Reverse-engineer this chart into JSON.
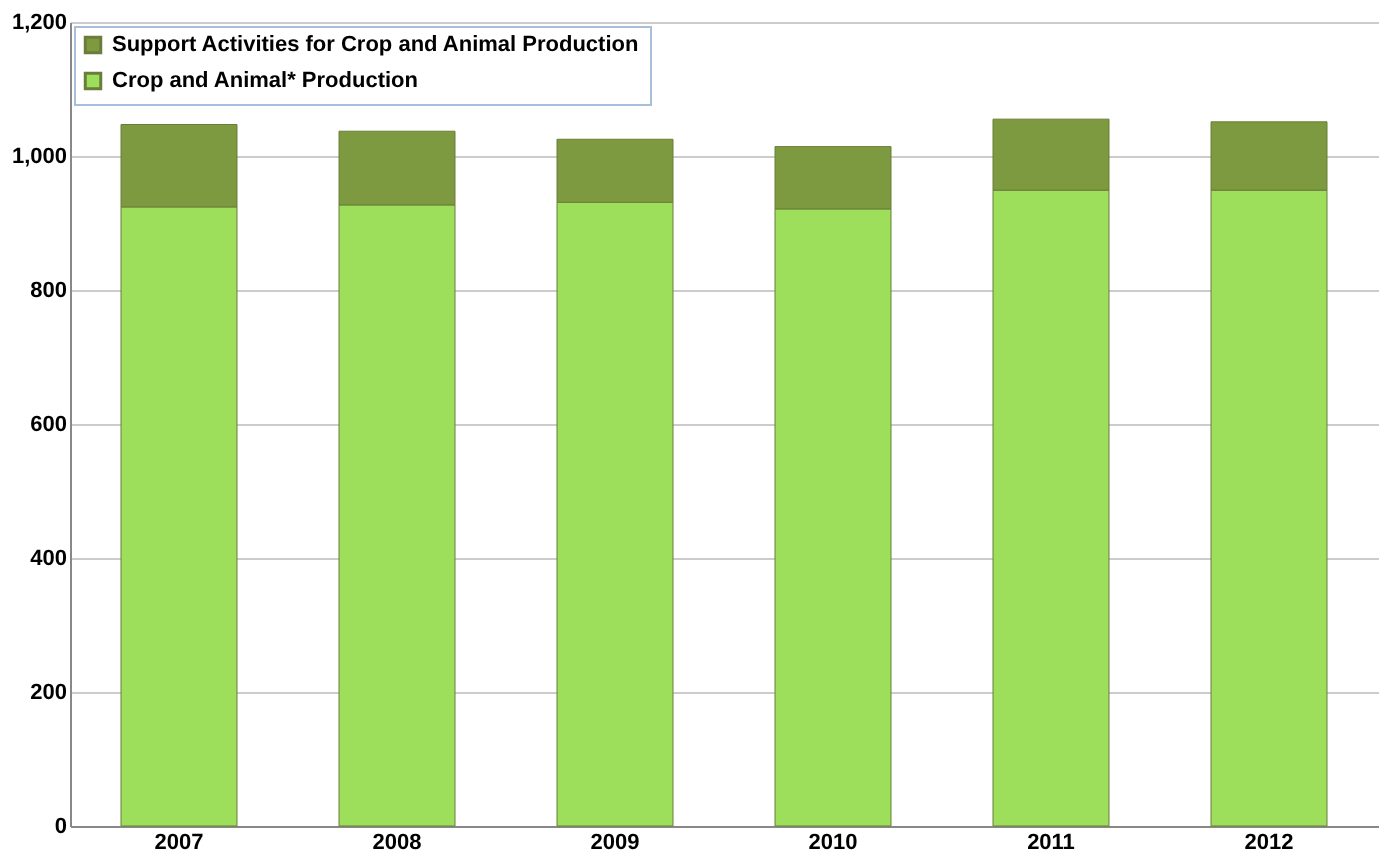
{
  "chart_data": {
    "type": "bar",
    "stacked": true,
    "categories": [
      "2007",
      "2008",
      "2009",
      "2010",
      "2011",
      "2012"
    ],
    "series": [
      {
        "name": "Crop and Animal* Production",
        "color": "#9ddf5a",
        "values": [
          924,
          927,
          931,
          921,
          949,
          949
        ]
      },
      {
        "name": "Support Activities for Crop and Animal Production",
        "color": "#7d9a40",
        "values": [
          123,
          110,
          94,
          93,
          106,
          102
        ]
      }
    ],
    "ylim": [
      0,
      1200
    ],
    "yticks": [
      {
        "value": 0,
        "label": "0"
      },
      {
        "value": 200,
        "label": "200"
      },
      {
        "value": 400,
        "label": "400"
      },
      {
        "value": 600,
        "label": "600"
      },
      {
        "value": 800,
        "label": "800"
      },
      {
        "value": 1000,
        "label": "1,000"
      },
      {
        "value": 1200,
        "label": "1,200"
      }
    ],
    "grid": "y",
    "legend": "top left"
  }
}
